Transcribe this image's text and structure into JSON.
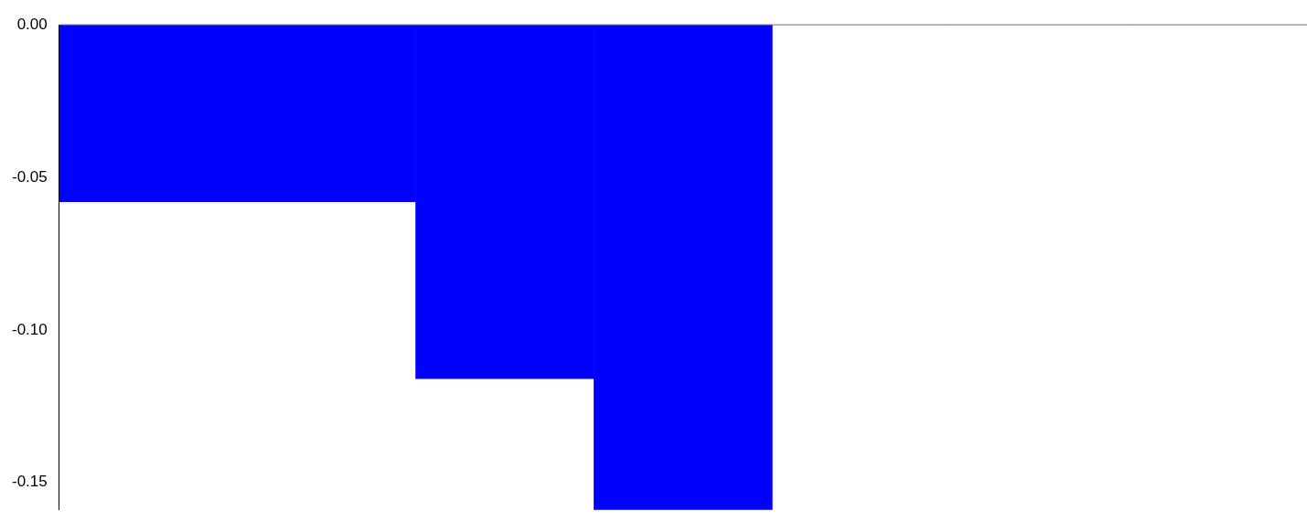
{
  "chart_data": {
    "type": "bar",
    "categories": [
      null,
      null,
      null,
      null,
      null,
      null,
      null
    ],
    "series": [
      {
        "color": "#0000ff",
        "values": [
          -0.058,
          -0.058,
          -0.116,
          -0.159,
          0,
          0,
          0
        ]
      }
    ],
    "ylim": [
      -0.159,
      0
    ],
    "yticks": [
      {
        "value": 0,
        "label": "0.00"
      },
      {
        "value": -0.05,
        "label": "-0.05"
      },
      {
        "value": -0.1,
        "label": "-0.10"
      },
      {
        "value": -0.15,
        "label": "-0.15"
      }
    ],
    "ref_lines": [
      {
        "axis": "y",
        "value": 0,
        "color": "#888888"
      }
    ],
    "grid": false,
    "legend": false,
    "tick_labels": "y"
  }
}
